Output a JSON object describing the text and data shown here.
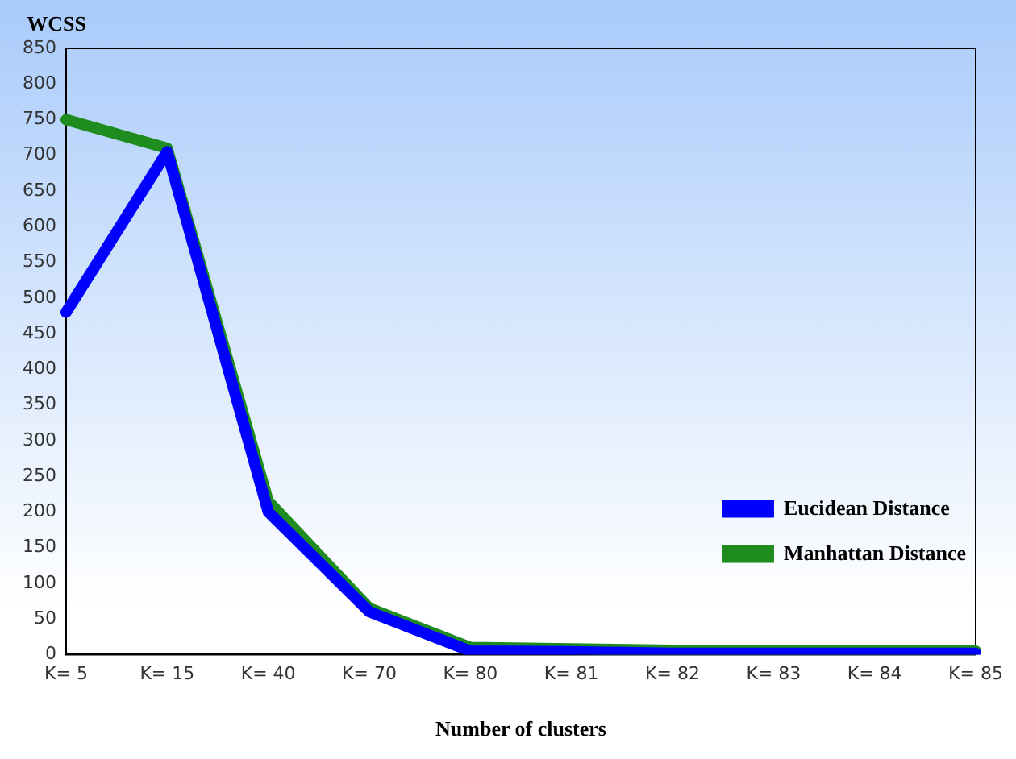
{
  "chart_data": {
    "type": "line",
    "ylabel": "WCSS",
    "xlabel": "Number of clusters",
    "categories": [
      "K= 5",
      "K= 15",
      "K= 40",
      "K= 70",
      "K= 80",
      "K= 81",
      "K= 82",
      "K= 83",
      "K= 84",
      "K= 85"
    ],
    "series": [
      {
        "name": "Eucidean Distance",
        "color": "#0000ff",
        "values": [
          480,
          705,
          200,
          60,
          5,
          4,
          2,
          2,
          2,
          2
        ]
      },
      {
        "name": "Manhattan Distance",
        "color": "#1e8c1e",
        "values": [
          750,
          710,
          215,
          65,
          10,
          8,
          6,
          5,
          5,
          5
        ]
      }
    ],
    "ylim": [
      0,
      850
    ],
    "yticks": [
      0,
      50,
      100,
      150,
      200,
      250,
      300,
      350,
      400,
      450,
      500,
      550,
      600,
      650,
      700,
      750,
      800,
      850
    ],
    "legend": "bottom right",
    "marker": "none",
    "line_style": "solid",
    "grid": false
  }
}
